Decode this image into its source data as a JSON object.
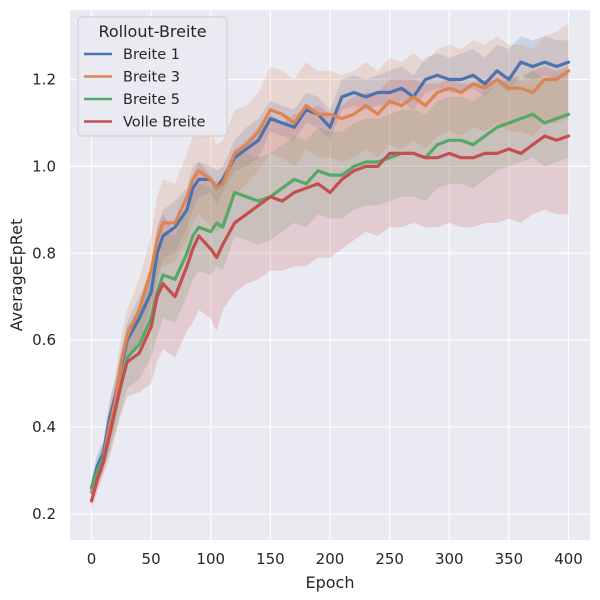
{
  "chart_data": {
    "type": "line",
    "xlabel": "Epoch",
    "ylabel": "AverageEpRet",
    "xlim": [
      -18,
      418
    ],
    "ylim": [
      0.14,
      1.36
    ],
    "xticks": [
      0,
      50,
      100,
      150,
      200,
      250,
      300,
      350,
      400
    ],
    "yticks": [
      0.2,
      0.4,
      0.6,
      0.8,
      1.0,
      1.2
    ],
    "grid": true,
    "legend": {
      "title": "Rollout-Breite",
      "placement": "top-left"
    },
    "background": "#eaeaf2",
    "series": [
      {
        "name": "Breite 1",
        "color": "#4c72b0",
        "x": [
          0,
          5,
          10,
          15,
          20,
          25,
          30,
          40,
          50,
          55,
          60,
          70,
          80,
          85,
          90,
          100,
          105,
          110,
          120,
          130,
          140,
          150,
          160,
          170,
          180,
          190,
          200,
          210,
          220,
          230,
          240,
          250,
          260,
          270,
          280,
          290,
          300,
          310,
          320,
          330,
          340,
          350,
          360,
          370,
          380,
          390,
          400
        ],
        "y": [
          0.26,
          0.31,
          0.34,
          0.42,
          0.47,
          0.54,
          0.6,
          0.65,
          0.71,
          0.8,
          0.84,
          0.86,
          0.9,
          0.95,
          0.97,
          0.97,
          0.95,
          0.97,
          1.02,
          1.04,
          1.06,
          1.11,
          1.1,
          1.09,
          1.13,
          1.12,
          1.09,
          1.16,
          1.17,
          1.16,
          1.17,
          1.17,
          1.18,
          1.16,
          1.2,
          1.21,
          1.2,
          1.2,
          1.21,
          1.19,
          1.22,
          1.2,
          1.24,
          1.23,
          1.24,
          1.23,
          1.24
        ],
        "lower": [
          0.24,
          0.28,
          0.32,
          0.38,
          0.43,
          0.5,
          0.56,
          0.6,
          0.66,
          0.74,
          0.79,
          0.8,
          0.86,
          0.9,
          0.93,
          0.94,
          0.91,
          0.94,
          0.99,
          1.0,
          1.02,
          1.08,
          1.07,
          1.06,
          1.1,
          1.09,
          1.06,
          1.13,
          1.14,
          1.13,
          1.14,
          1.14,
          1.15,
          1.13,
          1.17,
          1.18,
          1.17,
          1.17,
          1.18,
          1.16,
          1.19,
          1.17,
          1.21,
          1.2,
          1.21,
          1.2,
          1.21
        ],
        "upper": [
          0.28,
          0.34,
          0.37,
          0.46,
          0.51,
          0.58,
          0.64,
          0.7,
          0.76,
          0.86,
          0.9,
          0.92,
          0.95,
          1.0,
          1.01,
          1.0,
          0.99,
          1.0,
          1.06,
          1.09,
          1.11,
          1.15,
          1.14,
          1.13,
          1.17,
          1.16,
          1.13,
          1.2,
          1.21,
          1.2,
          1.21,
          1.22,
          1.23,
          1.21,
          1.25,
          1.26,
          1.25,
          1.26,
          1.27,
          1.25,
          1.28,
          1.27,
          1.3,
          1.29,
          1.3,
          1.29,
          1.29
        ]
      },
      {
        "name": "Breite 3",
        "color": "#dd8452",
        "x": [
          0,
          5,
          10,
          15,
          20,
          25,
          30,
          40,
          50,
          55,
          60,
          70,
          80,
          85,
          90,
          100,
          105,
          110,
          120,
          130,
          140,
          150,
          160,
          170,
          180,
          190,
          200,
          210,
          220,
          230,
          240,
          250,
          260,
          270,
          280,
          290,
          300,
          310,
          320,
          330,
          340,
          350,
          360,
          370,
          380,
          390,
          400
        ],
        "y": [
          0.25,
          0.29,
          0.33,
          0.4,
          0.46,
          0.55,
          0.61,
          0.67,
          0.76,
          0.83,
          0.87,
          0.87,
          0.93,
          0.97,
          0.99,
          0.97,
          0.95,
          0.96,
          1.03,
          1.05,
          1.08,
          1.13,
          1.12,
          1.1,
          1.14,
          1.12,
          1.12,
          1.11,
          1.12,
          1.14,
          1.12,
          1.15,
          1.14,
          1.16,
          1.14,
          1.17,
          1.18,
          1.17,
          1.19,
          1.18,
          1.2,
          1.18,
          1.18,
          1.17,
          1.2,
          1.2,
          1.22
        ],
        "lower": [
          0.23,
          0.26,
          0.3,
          0.35,
          0.4,
          0.49,
          0.55,
          0.6,
          0.68,
          0.73,
          0.77,
          0.78,
          0.83,
          0.87,
          0.89,
          0.86,
          0.85,
          0.86,
          0.93,
          0.96,
          0.99,
          1.03,
          1.02,
          1.0,
          1.04,
          1.02,
          1.02,
          1.01,
          1.02,
          1.04,
          1.02,
          1.05,
          1.04,
          1.06,
          1.04,
          1.07,
          1.08,
          1.07,
          1.09,
          1.08,
          1.1,
          1.08,
          1.08,
          1.07,
          1.1,
          1.1,
          1.11
        ],
        "upper": [
          0.27,
          0.32,
          0.36,
          0.45,
          0.52,
          0.61,
          0.67,
          0.74,
          0.84,
          0.93,
          0.97,
          0.96,
          1.03,
          1.07,
          1.09,
          1.08,
          1.05,
          1.06,
          1.13,
          1.14,
          1.17,
          1.23,
          1.22,
          1.2,
          1.24,
          1.22,
          1.22,
          1.21,
          1.22,
          1.24,
          1.22,
          1.25,
          1.24,
          1.26,
          1.24,
          1.27,
          1.28,
          1.27,
          1.29,
          1.28,
          1.3,
          1.28,
          1.28,
          1.27,
          1.3,
          1.31,
          1.33
        ]
      },
      {
        "name": "Breite 5",
        "color": "#55a868",
        "x": [
          0,
          5,
          10,
          15,
          20,
          25,
          30,
          40,
          50,
          55,
          60,
          70,
          80,
          85,
          90,
          100,
          105,
          110,
          120,
          130,
          140,
          150,
          160,
          170,
          180,
          190,
          200,
          210,
          220,
          230,
          240,
          250,
          260,
          270,
          280,
          290,
          300,
          310,
          320,
          330,
          340,
          350,
          360,
          370,
          380,
          390,
          400
        ],
        "y": [
          0.26,
          0.3,
          0.33,
          0.38,
          0.44,
          0.5,
          0.56,
          0.59,
          0.65,
          0.71,
          0.75,
          0.74,
          0.8,
          0.84,
          0.86,
          0.85,
          0.87,
          0.86,
          0.94,
          0.93,
          0.92,
          0.93,
          0.95,
          0.97,
          0.96,
          0.99,
          0.98,
          0.98,
          1.0,
          1.01,
          1.01,
          1.02,
          1.03,
          1.03,
          1.02,
          1.05,
          1.06,
          1.06,
          1.05,
          1.07,
          1.09,
          1.1,
          1.11,
          1.12,
          1.1,
          1.11,
          1.12
        ],
        "lower": [
          0.24,
          0.27,
          0.3,
          0.34,
          0.39,
          0.44,
          0.49,
          0.51,
          0.56,
          0.61,
          0.65,
          0.64,
          0.7,
          0.74,
          0.76,
          0.75,
          0.77,
          0.76,
          0.84,
          0.83,
          0.82,
          0.83,
          0.85,
          0.87,
          0.86,
          0.89,
          0.88,
          0.88,
          0.9,
          0.91,
          0.91,
          0.92,
          0.93,
          0.93,
          0.92,
          0.95,
          0.96,
          0.96,
          0.95,
          0.97,
          0.99,
          1.0,
          1.01,
          1.02,
          1.0,
          1.01,
          1.02
        ],
        "upper": [
          0.28,
          0.33,
          0.36,
          0.42,
          0.49,
          0.56,
          0.63,
          0.67,
          0.74,
          0.81,
          0.85,
          0.84,
          0.9,
          0.94,
          0.96,
          0.95,
          0.97,
          0.96,
          1.04,
          1.03,
          1.02,
          1.03,
          1.05,
          1.07,
          1.06,
          1.09,
          1.08,
          1.08,
          1.1,
          1.11,
          1.11,
          1.12,
          1.13,
          1.13,
          1.12,
          1.15,
          1.16,
          1.16,
          1.15,
          1.17,
          1.19,
          1.2,
          1.21,
          1.22,
          1.2,
          1.21,
          1.22
        ]
      },
      {
        "name": "Volle Breite",
        "color": "#c44e52",
        "x": [
          0,
          5,
          10,
          15,
          20,
          25,
          30,
          40,
          50,
          55,
          60,
          70,
          80,
          85,
          90,
          100,
          105,
          110,
          120,
          130,
          140,
          150,
          160,
          170,
          180,
          190,
          200,
          210,
          220,
          230,
          240,
          250,
          260,
          270,
          280,
          290,
          300,
          310,
          320,
          330,
          340,
          350,
          360,
          370,
          380,
          390,
          400
        ],
        "y": [
          0.23,
          0.28,
          0.32,
          0.38,
          0.44,
          0.5,
          0.55,
          0.57,
          0.63,
          0.7,
          0.73,
          0.7,
          0.77,
          0.81,
          0.84,
          0.81,
          0.79,
          0.82,
          0.87,
          0.89,
          0.91,
          0.93,
          0.92,
          0.94,
          0.95,
          0.96,
          0.94,
          0.97,
          0.99,
          1.0,
          1.0,
          1.03,
          1.03,
          1.03,
          1.02,
          1.02,
          1.03,
          1.02,
          1.02,
          1.03,
          1.03,
          1.04,
          1.03,
          1.05,
          1.07,
          1.06,
          1.07
        ],
        "lower": [
          0.21,
          0.25,
          0.29,
          0.33,
          0.38,
          0.43,
          0.47,
          0.48,
          0.5,
          0.55,
          0.58,
          0.56,
          0.62,
          0.64,
          0.67,
          0.65,
          0.62,
          0.67,
          0.71,
          0.73,
          0.74,
          0.76,
          0.76,
          0.77,
          0.77,
          0.79,
          0.79,
          0.81,
          0.83,
          0.85,
          0.84,
          0.86,
          0.86,
          0.87,
          0.86,
          0.86,
          0.87,
          0.86,
          0.86,
          0.87,
          0.87,
          0.88,
          0.87,
          0.89,
          0.9,
          0.89,
          0.89
        ],
        "upper": [
          0.26,
          0.31,
          0.36,
          0.43,
          0.5,
          0.57,
          0.63,
          0.66,
          0.77,
          0.86,
          0.89,
          0.85,
          0.92,
          0.98,
          1.01,
          0.98,
          0.96,
          0.98,
          1.04,
          1.06,
          1.09,
          1.12,
          1.1,
          1.12,
          1.13,
          1.14,
          1.12,
          1.14,
          1.16,
          1.17,
          1.17,
          1.2,
          1.2,
          1.2,
          1.19,
          1.19,
          1.2,
          1.19,
          1.19,
          1.2,
          1.2,
          1.21,
          1.2,
          1.22,
          1.23,
          1.22,
          1.23
        ]
      }
    ]
  }
}
